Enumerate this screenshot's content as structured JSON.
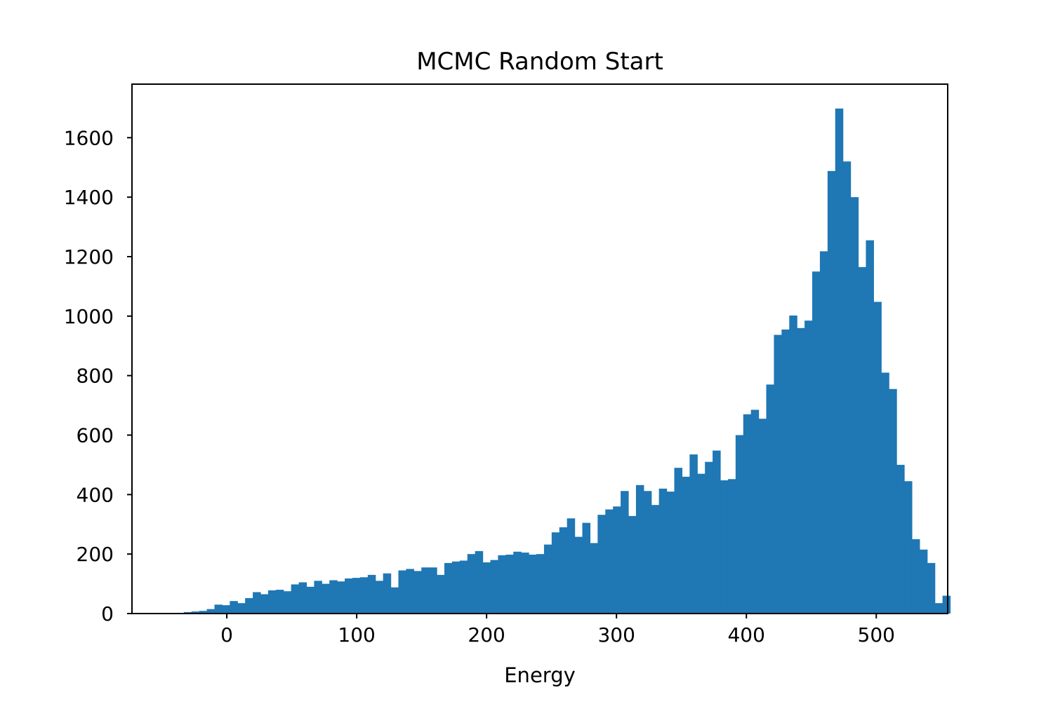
{
  "chart_data": {
    "type": "bar",
    "subtype": "histogram",
    "title": "MCMC Random Start",
    "xlabel": "Energy",
    "ylabel": "",
    "xlim": [
      -73,
      555
    ],
    "ylim": [
      0,
      1780
    ],
    "bin_width": 5.9,
    "bin_start": -33.1,
    "xticks": [
      0,
      100,
      200,
      300,
      400,
      500
    ],
    "yticks": [
      0,
      200,
      400,
      600,
      800,
      1000,
      1200,
      1400,
      1600
    ],
    "grid": false,
    "legend": false,
    "bar_color": "#1f77b4",
    "values": [
      5,
      7,
      9,
      15,
      30,
      28,
      42,
      35,
      52,
      72,
      65,
      78,
      80,
      75,
      98,
      105,
      90,
      110,
      100,
      112,
      108,
      118,
      120,
      122,
      130,
      110,
      135,
      88,
      145,
      150,
      143,
      155,
      155,
      130,
      170,
      175,
      178,
      200,
      210,
      172,
      180,
      196,
      198,
      208,
      205,
      198,
      200,
      232,
      273,
      290,
      320,
      258,
      305,
      237,
      332,
      350,
      360,
      412,
      328,
      432,
      412,
      365,
      420,
      410,
      490,
      460,
      535,
      470,
      510,
      548,
      448,
      452,
      600,
      670,
      685,
      655,
      770,
      937,
      955,
      1002,
      960,
      985,
      1150,
      1218,
      1488,
      1698,
      1520,
      1400,
      1165,
      1255,
      1048,
      810,
      755,
      500,
      445,
      250,
      215,
      170,
      35,
      60
    ]
  }
}
